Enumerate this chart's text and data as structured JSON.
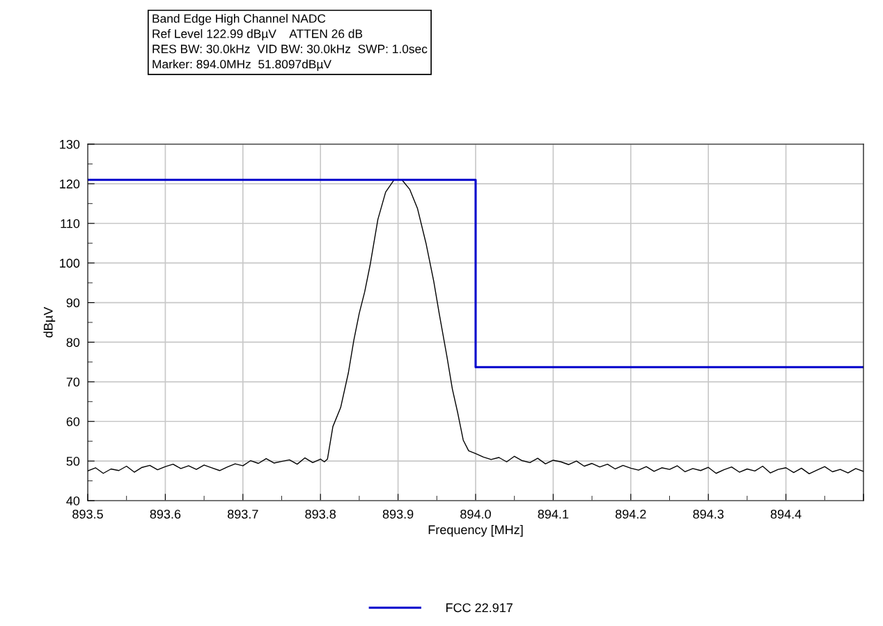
{
  "chart_data": {
    "type": "line",
    "title": "Band Edge High Channel NADC",
    "annotations": [
      "Ref Level 122.99 dBµV    ATTEN 26 dB",
      "RES BW: 30.0kHz  VID BW: 30.0kHz  SWP: 1.0sec",
      "Marker: 894.0MHz  51.8097dBµV"
    ],
    "xlabel": "Frequency [MHz]",
    "ylabel": "dBµV",
    "xlim": [
      893.5,
      894.5
    ],
    "ylim": [
      40,
      130
    ],
    "xticks": [
      893.5,
      893.6,
      893.7,
      893.8,
      893.9,
      {
        "value": 894.0,
        "label": "894.0"
      },
      894.1,
      894.2,
      894.3,
      894.4,
      {
        "value": 894.5,
        "label": null
      }
    ],
    "yticks": [
      40,
      50,
      60,
      70,
      80,
      90,
      100,
      110,
      120,
      130
    ],
    "grid": true,
    "legend": "bottom",
    "series": [
      {
        "color": "#000000",
        "x": [
          893.5,
          893.51,
          893.52,
          893.53,
          893.54,
          893.55,
          893.56,
          893.57,
          893.58,
          893.59,
          893.6,
          893.61,
          893.62,
          893.63,
          893.64,
          893.65,
          893.66,
          893.67,
          893.68,
          893.69,
          893.7,
          893.71,
          893.72,
          893.73,
          893.74,
          893.75,
          893.76,
          893.77,
          893.78,
          893.79,
          893.8,
          893.805,
          893.809,
          893.816,
          893.826,
          893.836,
          893.843,
          893.85,
          893.857,
          893.864,
          893.874,
          893.884,
          893.895,
          893.905,
          893.915,
          893.925,
          893.936,
          893.946,
          893.953,
          893.963,
          893.97,
          893.977,
          893.984,
          893.991,
          894.0,
          894.01,
          894.02,
          894.03,
          894.04,
          894.05,
          894.06,
          894.07,
          894.08,
          894.09,
          894.1,
          894.11,
          894.12,
          894.13,
          894.14,
          894.15,
          894.16,
          894.17,
          894.18,
          894.19,
          894.2,
          894.21,
          894.22,
          894.23,
          894.24,
          894.25,
          894.26,
          894.27,
          894.28,
          894.29,
          894.3,
          894.31,
          894.32,
          894.33,
          894.34,
          894.35,
          894.36,
          894.37,
          894.38,
          894.39,
          894.4,
          894.41,
          894.42,
          894.43,
          894.44,
          894.45,
          894.46,
          894.47,
          894.48,
          894.49,
          894.5
        ],
        "values": [
          47.5,
          48.3,
          46.9,
          48.0,
          47.6,
          48.7,
          47.2,
          48.4,
          48.9,
          47.8,
          48.6,
          49.2,
          48.1,
          48.8,
          47.9,
          49.0,
          48.3,
          47.6,
          48.5,
          49.3,
          48.8,
          50.1,
          49.4,
          50.6,
          49.5,
          49.9,
          50.3,
          49.2,
          50.8,
          49.6,
          50.5,
          49.8,
          50.5,
          58.7,
          63.5,
          72.3,
          80.5,
          87.3,
          92.7,
          99.5,
          111,
          117.9,
          121,
          121,
          118.6,
          113.8,
          105,
          95.4,
          87.3,
          76.4,
          68.2,
          62.1,
          55.3,
          52.6,
          51.9,
          51.0,
          50.4,
          50.9,
          49.8,
          51.2,
          50.1,
          49.6,
          50.7,
          49.3,
          50.2,
          49.8,
          49.1,
          50.0,
          48.7,
          49.4,
          48.5,
          49.2,
          48.0,
          48.9,
          48.2,
          47.7,
          48.6,
          47.4,
          48.3,
          47.9,
          48.8,
          47.3,
          48.1,
          47.6,
          48.4,
          46.9,
          47.8,
          48.5,
          47.2,
          48.0,
          47.5,
          48.7,
          47.0,
          47.9,
          48.3,
          47.1,
          48.2,
          46.8,
          47.7,
          48.6,
          47.3,
          47.9,
          47.0,
          48.1,
          47.4
        ]
      },
      {
        "name": "FCC 22.917",
        "color": "#0000cc",
        "x": [
          893.5,
          894.0,
          894.0,
          894.5
        ],
        "values": [
          121,
          121,
          73.7,
          73.7
        ]
      }
    ]
  }
}
